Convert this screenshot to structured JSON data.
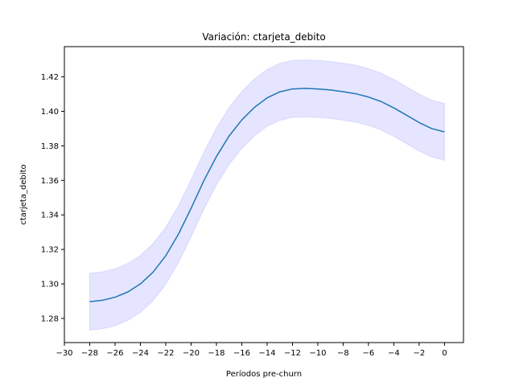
{
  "chart_data": {
    "type": "line",
    "title": "Variación: ctarjeta_debito",
    "xlabel": "Períodos pre-churn",
    "ylabel": "ctarjeta_debito",
    "xlim": [
      -30,
      1.5
    ],
    "ylim": [
      1.266,
      1.4375
    ],
    "grid": false,
    "legend": "none",
    "x_ticks": [
      -30,
      -28,
      -26,
      -24,
      -22,
      -20,
      -18,
      -16,
      -14,
      -12,
      -10,
      -8,
      -6,
      -4,
      -2,
      0
    ],
    "x_tick_labels": [
      "−30",
      "−28",
      "−26",
      "−24",
      "−22",
      "−20",
      "−18",
      "−16",
      "−14",
      "−12",
      "−10",
      "−8",
      "−6",
      "−4",
      "−2",
      "0"
    ],
    "y_ticks": [
      1.28,
      1.3,
      1.32,
      1.34,
      1.36,
      1.38,
      1.4,
      1.42
    ],
    "y_tick_labels": [
      "1.28",
      "1.30",
      "1.32",
      "1.34",
      "1.36",
      "1.38",
      "1.40",
      "1.42"
    ],
    "x": [
      -28,
      -27,
      -26,
      -25,
      -24,
      -23,
      -22,
      -21,
      -20,
      -19,
      -18,
      -17,
      -16,
      -15,
      -14,
      -13,
      -12,
      -11,
      -10,
      -9,
      -8,
      -7,
      -6,
      -5,
      -4,
      -3,
      -2,
      -1,
      0
    ],
    "series": [
      {
        "values": [
          1.2897,
          1.2905,
          1.2923,
          1.2953,
          1.3,
          1.3068,
          1.3163,
          1.3288,
          1.3438,
          1.3597,
          1.3738,
          1.3857,
          1.395,
          1.4023,
          1.4078,
          1.4113,
          1.413,
          1.4133,
          1.413,
          1.4124,
          1.4114,
          1.4102,
          1.4083,
          1.4057,
          1.402,
          1.3978,
          1.3935,
          1.39,
          1.3881
        ],
        "lower": [
          1.2732,
          1.274,
          1.2758,
          1.2788,
          1.2835,
          1.2903,
          1.2998,
          1.3123,
          1.3273,
          1.3432,
          1.3573,
          1.3692,
          1.3785,
          1.3858,
          1.3913,
          1.3948,
          1.3965,
          1.3968,
          1.3965,
          1.3959,
          1.3949,
          1.3937,
          1.3918,
          1.3892,
          1.3855,
          1.3813,
          1.377,
          1.3735,
          1.3716
        ],
        "upper": [
          1.3062,
          1.307,
          1.3088,
          1.3118,
          1.3165,
          1.3233,
          1.3328,
          1.3453,
          1.3603,
          1.3762,
          1.3903,
          1.4022,
          1.4115,
          1.4188,
          1.4243,
          1.4278,
          1.4295,
          1.4298,
          1.4295,
          1.4289,
          1.4279,
          1.4267,
          1.4248,
          1.4222,
          1.4185,
          1.4143,
          1.41,
          1.4065,
          1.4046
        ],
        "color": "#1f77b4",
        "band_color": "#0000ff"
      }
    ]
  }
}
